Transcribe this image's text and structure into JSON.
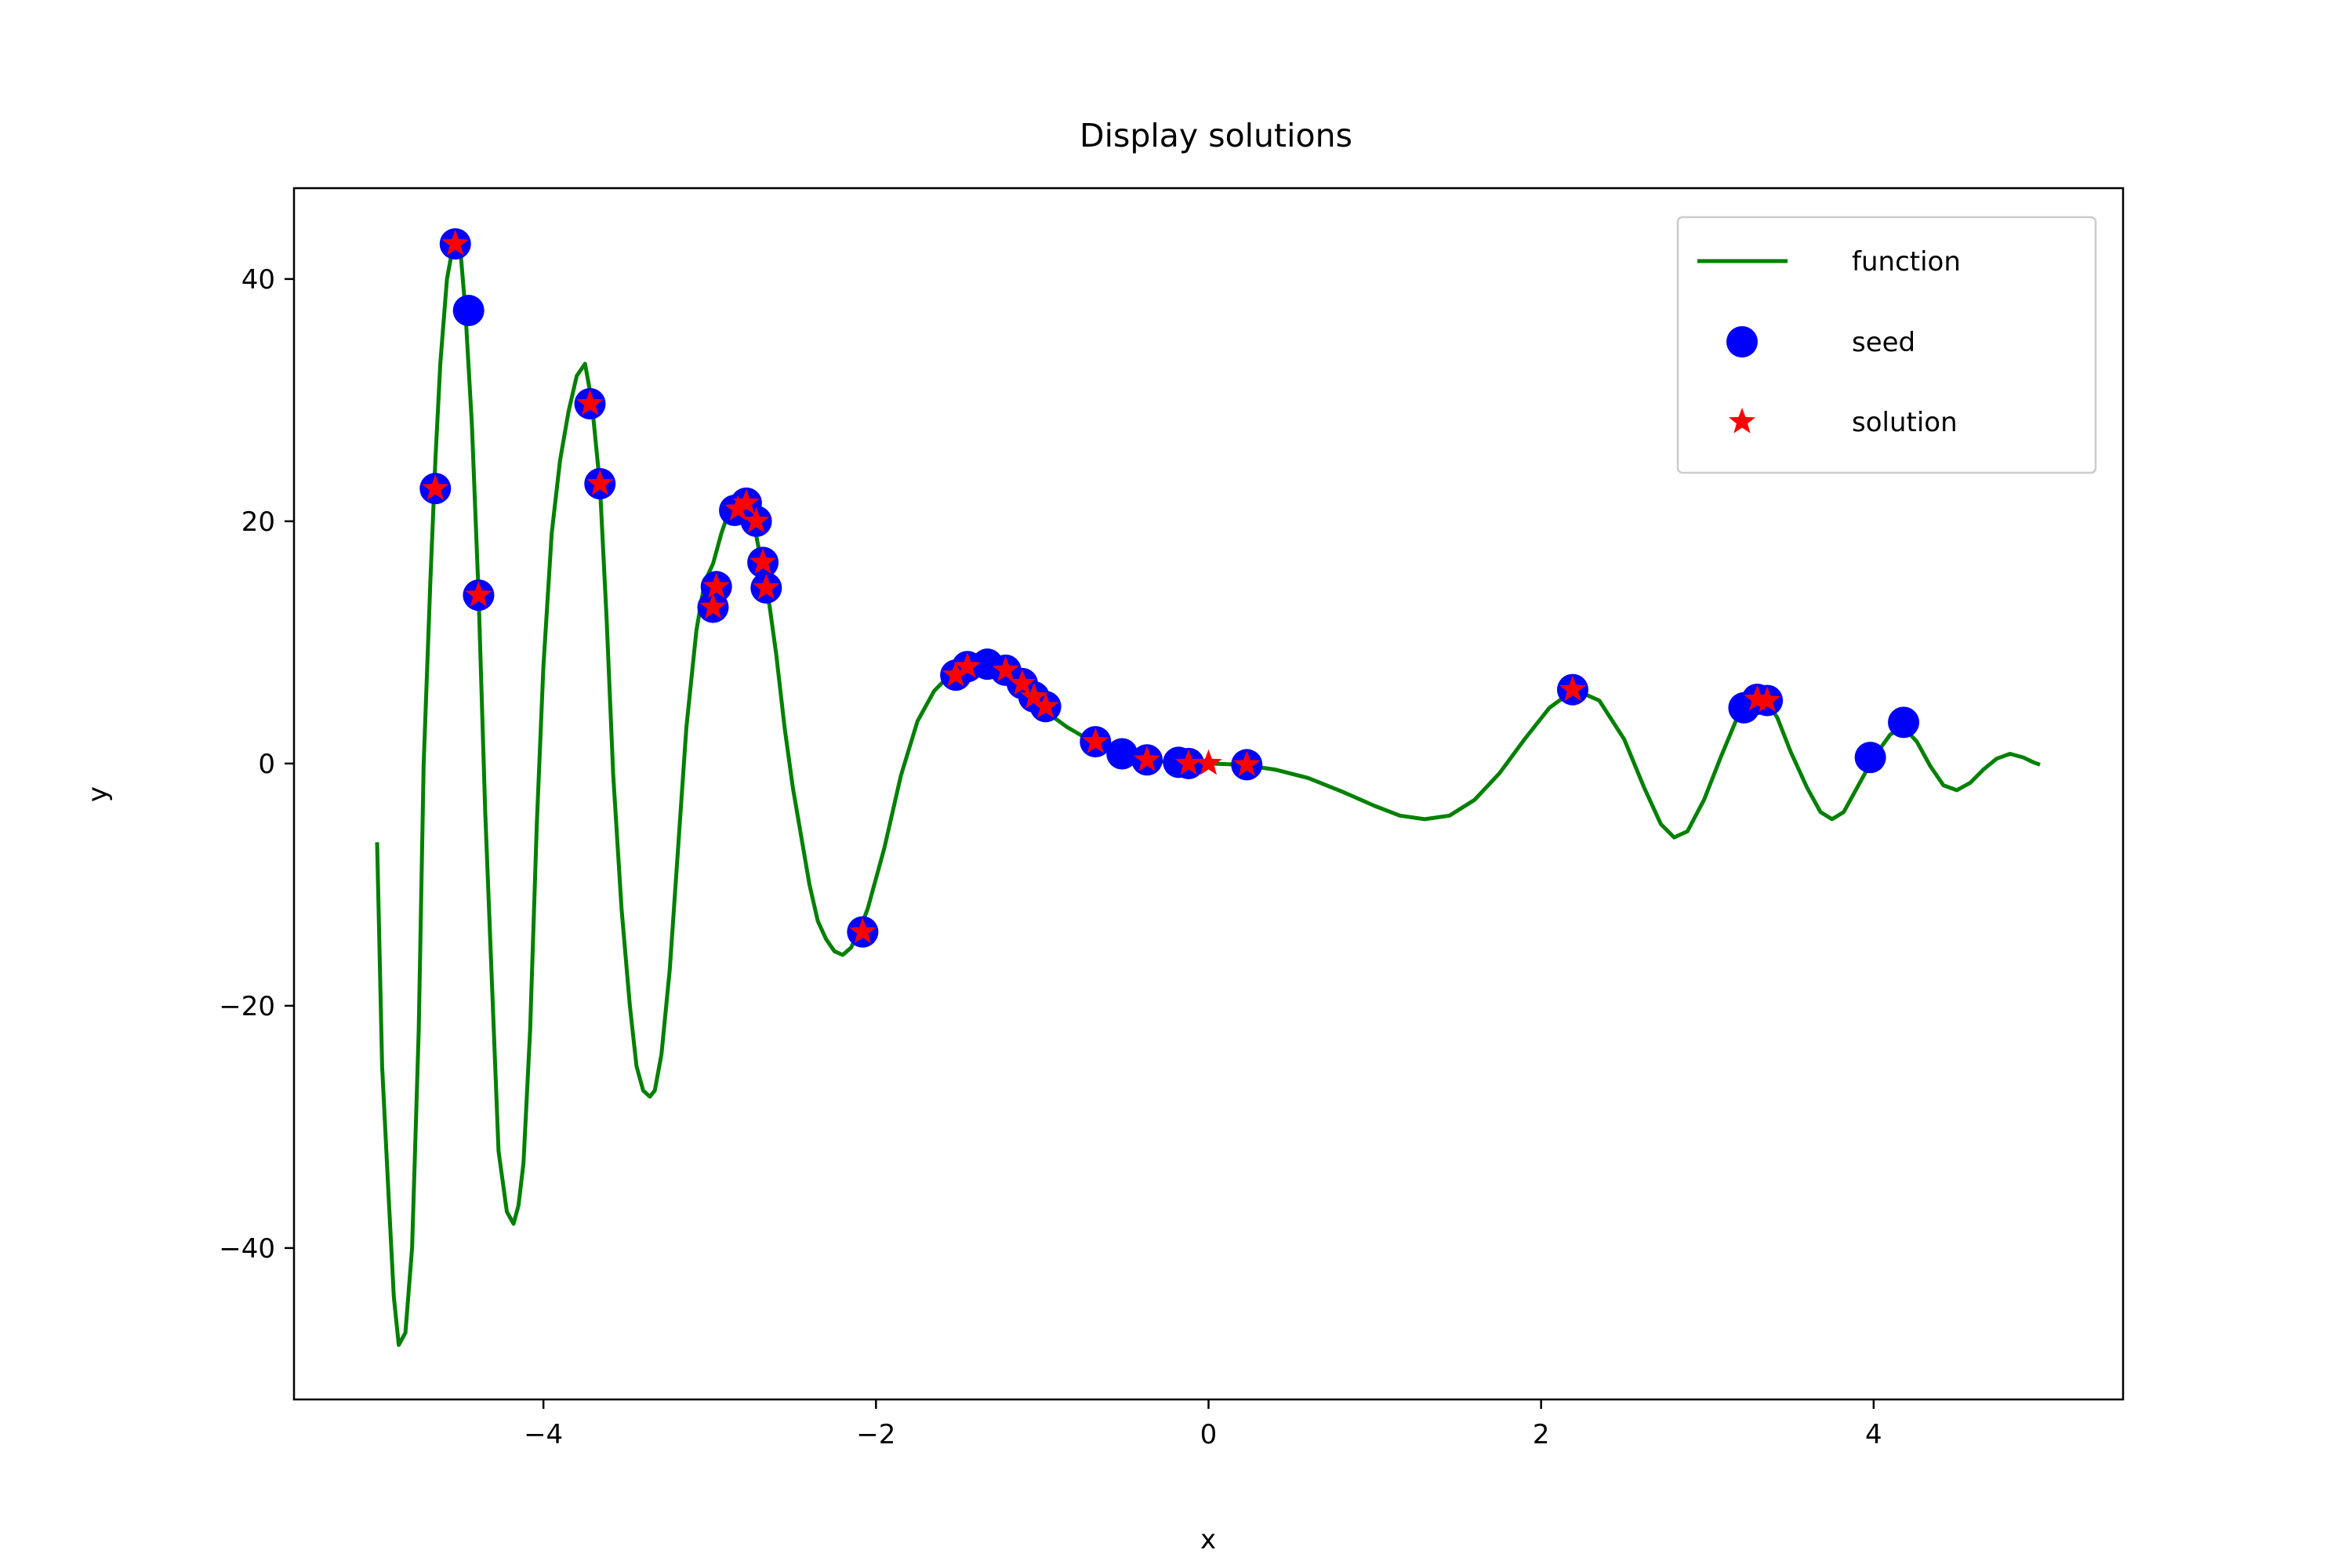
{
  "chart_data": {
    "type": "line",
    "title": "Display solutions",
    "xlabel": "x",
    "ylabel": "y",
    "xlim": [
      -5.5,
      5.5
    ],
    "ylim": [
      -52.5,
      47.5
    ],
    "xticks": [
      -4,
      -2,
      0,
      2,
      4
    ],
    "yticks": [
      -40,
      -20,
      0,
      20,
      40
    ],
    "grid": false,
    "legend_position": "top-right",
    "legend": [
      {
        "name": "function",
        "kind": "line",
        "color": "#008000"
      },
      {
        "name": "seed",
        "kind": "marker-circle",
        "color": "#0000ff"
      },
      {
        "name": "solution",
        "kind": "marker-star",
        "color": "#ff0000"
      }
    ],
    "series": [
      {
        "name": "function",
        "style": "line",
        "color": "#008000",
        "points": [
          [
            -5.0,
            -6.5
          ],
          [
            -4.97,
            -25
          ],
          [
            -4.93,
            -36
          ],
          [
            -4.9,
            -44
          ],
          [
            -4.87,
            -48
          ],
          [
            -4.83,
            -47
          ],
          [
            -4.79,
            -40
          ],
          [
            -4.75,
            -22
          ],
          [
            -4.72,
            0
          ],
          [
            -4.68,
            15
          ],
          [
            -4.65,
            25
          ],
          [
            -4.62,
            33
          ],
          [
            -4.58,
            40
          ],
          [
            -4.54,
            43
          ],
          [
            -4.5,
            42.5
          ],
          [
            -4.47,
            37.5
          ],
          [
            -4.43,
            28
          ],
          [
            -4.39,
            14
          ],
          [
            -4.35,
            -4
          ],
          [
            -4.31,
            -18
          ],
          [
            -4.27,
            -32
          ],
          [
            -4.22,
            -37
          ],
          [
            -4.18,
            -38
          ],
          [
            -4.15,
            -36.5
          ],
          [
            -4.12,
            -33
          ],
          [
            -4.08,
            -22
          ],
          [
            -4.04,
            -5
          ],
          [
            -4.0,
            8
          ],
          [
            -3.95,
            19
          ],
          [
            -3.9,
            25
          ],
          [
            -3.85,
            29
          ],
          [
            -3.8,
            32
          ],
          [
            -3.75,
            33
          ],
          [
            -3.71,
            30
          ],
          [
            -3.66,
            23
          ],
          [
            -3.62,
            12
          ],
          [
            -3.58,
            -1
          ],
          [
            -3.53,
            -12
          ],
          [
            -3.48,
            -20
          ],
          [
            -3.44,
            -25
          ],
          [
            -3.4,
            -27
          ],
          [
            -3.36,
            -27.5
          ],
          [
            -3.33,
            -27
          ],
          [
            -3.29,
            -24
          ],
          [
            -3.24,
            -17
          ],
          [
            -3.19,
            -7
          ],
          [
            -3.14,
            3
          ],
          [
            -3.08,
            11
          ],
          [
            -3.03,
            15
          ],
          [
            -2.98,
            16.5
          ],
          [
            -2.93,
            19
          ],
          [
            -2.88,
            21
          ],
          [
            -2.83,
            21.5
          ],
          [
            -2.78,
            21.5
          ],
          [
            -2.73,
            19.5
          ],
          [
            -2.68,
            16
          ],
          [
            -2.64,
            13
          ],
          [
            -2.6,
            9
          ],
          [
            -2.55,
            3
          ],
          [
            -2.5,
            -2
          ],
          [
            -2.45,
            -6
          ],
          [
            -2.4,
            -10
          ],
          [
            -2.35,
            -13
          ],
          [
            -2.3,
            -14.5
          ],
          [
            -2.25,
            -15.5
          ],
          [
            -2.2,
            -15.8
          ],
          [
            -2.15,
            -15.2
          ],
          [
            -2.1,
            -13.8
          ],
          [
            -2.05,
            -12
          ],
          [
            -1.95,
            -7
          ],
          [
            -1.85,
            -1
          ],
          [
            -1.75,
            3.5
          ],
          [
            -1.65,
            6
          ],
          [
            -1.55,
            7.4
          ],
          [
            -1.45,
            8.1
          ],
          [
            -1.35,
            8.2
          ],
          [
            -1.25,
            7.8
          ],
          [
            -1.15,
            6.7
          ],
          [
            -1.05,
            5.2
          ],
          [
            -0.95,
            4.0
          ],
          [
            -0.85,
            3.0
          ],
          [
            -0.75,
            2.2
          ],
          [
            -0.65,
            1.6
          ],
          [
            -0.55,
            1.0
          ],
          [
            -0.45,
            0.6
          ],
          [
            -0.35,
            0.3
          ],
          [
            -0.25,
            0.1
          ],
          [
            -0.15,
            0.0
          ],
          [
            0.0,
            0.0
          ],
          [
            0.2,
            -0.1
          ],
          [
            0.4,
            -0.5
          ],
          [
            0.6,
            -1.2
          ],
          [
            0.8,
            -2.3
          ],
          [
            1.0,
            -3.5
          ],
          [
            1.15,
            -4.3
          ],
          [
            1.3,
            -4.6
          ],
          [
            1.45,
            -4.3
          ],
          [
            1.6,
            -3.0
          ],
          [
            1.75,
            -0.8
          ],
          [
            1.9,
            2.0
          ],
          [
            2.05,
            4.6
          ],
          [
            2.2,
            6.1
          ],
          [
            2.35,
            5.2
          ],
          [
            2.5,
            2.0
          ],
          [
            2.62,
            -2.0
          ],
          [
            2.72,
            -5.0
          ],
          [
            2.8,
            -6.1
          ],
          [
            2.88,
            -5.6
          ],
          [
            2.98,
            -3.0
          ],
          [
            3.08,
            0.5
          ],
          [
            3.18,
            3.8
          ],
          [
            3.26,
            5.3
          ],
          [
            3.34,
            5.5
          ],
          [
            3.42,
            3.8
          ],
          [
            3.5,
            1.0
          ],
          [
            3.6,
            -2.0
          ],
          [
            3.68,
            -4.0
          ],
          [
            3.75,
            -4.6
          ],
          [
            3.82,
            -4.0
          ],
          [
            3.9,
            -2.0
          ],
          [
            4.0,
            0.5
          ],
          [
            4.1,
            2.4
          ],
          [
            4.18,
            3.0
          ],
          [
            4.26,
            1.8
          ],
          [
            4.34,
            -0.2
          ],
          [
            4.42,
            -1.8
          ],
          [
            4.5,
            -2.2
          ],
          [
            4.58,
            -1.6
          ],
          [
            4.66,
            -0.5
          ],
          [
            4.74,
            0.4
          ],
          [
            4.82,
            0.8
          ],
          [
            4.9,
            0.5
          ],
          [
            4.96,
            0.1
          ],
          [
            5.0,
            -0.1
          ]
        ]
      },
      {
        "name": "seed",
        "style": "marker-circle",
        "color": "#0000ff",
        "points": [
          [
            -4.65,
            22.7
          ],
          [
            -4.53,
            42.9
          ],
          [
            -4.45,
            37.4
          ],
          [
            -4.39,
            13.9
          ],
          [
            -3.72,
            29.7
          ],
          [
            -3.66,
            23.1
          ],
          [
            -2.98,
            12.9
          ],
          [
            -2.96,
            14.6
          ],
          [
            -2.85,
            20.9
          ],
          [
            -2.78,
            21.5
          ],
          [
            -2.72,
            20.0
          ],
          [
            -2.68,
            16.6
          ],
          [
            -2.66,
            14.5
          ],
          [
            -2.08,
            -13.9
          ],
          [
            -1.52,
            7.3
          ],
          [
            -1.45,
            8.0
          ],
          [
            -1.33,
            8.2
          ],
          [
            -1.22,
            7.7
          ],
          [
            -1.12,
            6.6
          ],
          [
            -1.05,
            5.5
          ],
          [
            -0.98,
            4.7
          ],
          [
            -0.68,
            1.8
          ],
          [
            -0.52,
            0.8
          ],
          [
            -0.37,
            0.3
          ],
          [
            -0.18,
            0.1
          ],
          [
            -0.12,
            0.0
          ],
          [
            0.23,
            -0.1
          ],
          [
            2.19,
            6.1
          ],
          [
            3.22,
            4.6
          ],
          [
            3.3,
            5.3
          ],
          [
            3.36,
            5.2
          ],
          [
            3.98,
            0.5
          ],
          [
            4.18,
            3.4
          ]
        ]
      },
      {
        "name": "solution",
        "style": "marker-star",
        "color": "#ff0000",
        "points": [
          [
            -4.65,
            22.7
          ],
          [
            -4.53,
            42.9
          ],
          [
            -4.39,
            13.9
          ],
          [
            -3.72,
            29.7
          ],
          [
            -3.66,
            23.1
          ],
          [
            -2.98,
            12.9
          ],
          [
            -2.96,
            14.6
          ],
          [
            -2.83,
            21.0
          ],
          [
            -2.78,
            21.5
          ],
          [
            -2.72,
            20.0
          ],
          [
            -2.68,
            16.6
          ],
          [
            -2.66,
            14.5
          ],
          [
            -2.08,
            -13.9
          ],
          [
            -1.52,
            7.3
          ],
          [
            -1.45,
            8.0
          ],
          [
            -1.22,
            7.7
          ],
          [
            -1.12,
            6.6
          ],
          [
            -1.05,
            5.5
          ],
          [
            -0.98,
            4.7
          ],
          [
            -0.68,
            1.8
          ],
          [
            -0.37,
            0.3
          ],
          [
            -0.12,
            0.0
          ],
          [
            0.0,
            0.0
          ],
          [
            0.23,
            -0.1
          ],
          [
            2.19,
            6.1
          ],
          [
            3.3,
            5.3
          ],
          [
            3.36,
            5.2
          ]
        ]
      }
    ]
  }
}
